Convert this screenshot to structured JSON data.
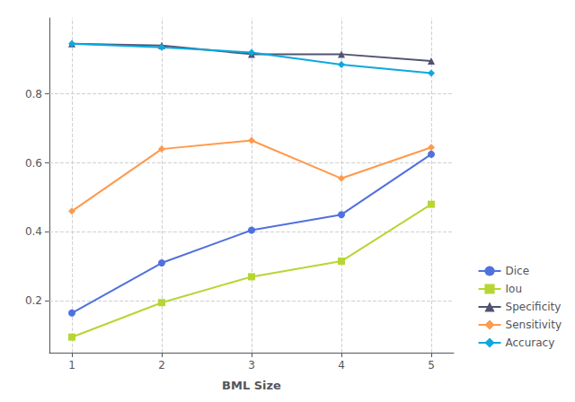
{
  "chart_data": {
    "type": "line",
    "xlabel": "BML Size",
    "x": [
      1,
      2,
      3,
      4,
      5
    ],
    "series": [
      {
        "name": "Dice",
        "values": [
          0.165,
          0.31,
          0.405,
          0.45,
          0.625
        ],
        "marker": "circle"
      },
      {
        "name": "Iou",
        "values": [
          0.095,
          0.195,
          0.27,
          0.315,
          0.48
        ],
        "marker": "square"
      },
      {
        "name": "Specificity",
        "values": [
          0.945,
          0.94,
          0.915,
          0.915,
          0.895
        ],
        "marker": "triangle"
      },
      {
        "name": "Sensitivity",
        "values": [
          0.46,
          0.64,
          0.665,
          0.555,
          0.645
        ],
        "marker": "diamond"
      },
      {
        "name": "Accuracy",
        "values": [
          0.945,
          0.935,
          0.92,
          0.885,
          0.86
        ],
        "marker": "diamond"
      }
    ],
    "xlim": [
      0.75,
      5.25
    ],
    "xticks": [
      1,
      2,
      3,
      4,
      5
    ],
    "ylim": [
      0.05,
      1.02
    ],
    "yticks": [
      0.2,
      0.4,
      0.6,
      0.8
    ],
    "grid": true,
    "legend": "lower right"
  }
}
